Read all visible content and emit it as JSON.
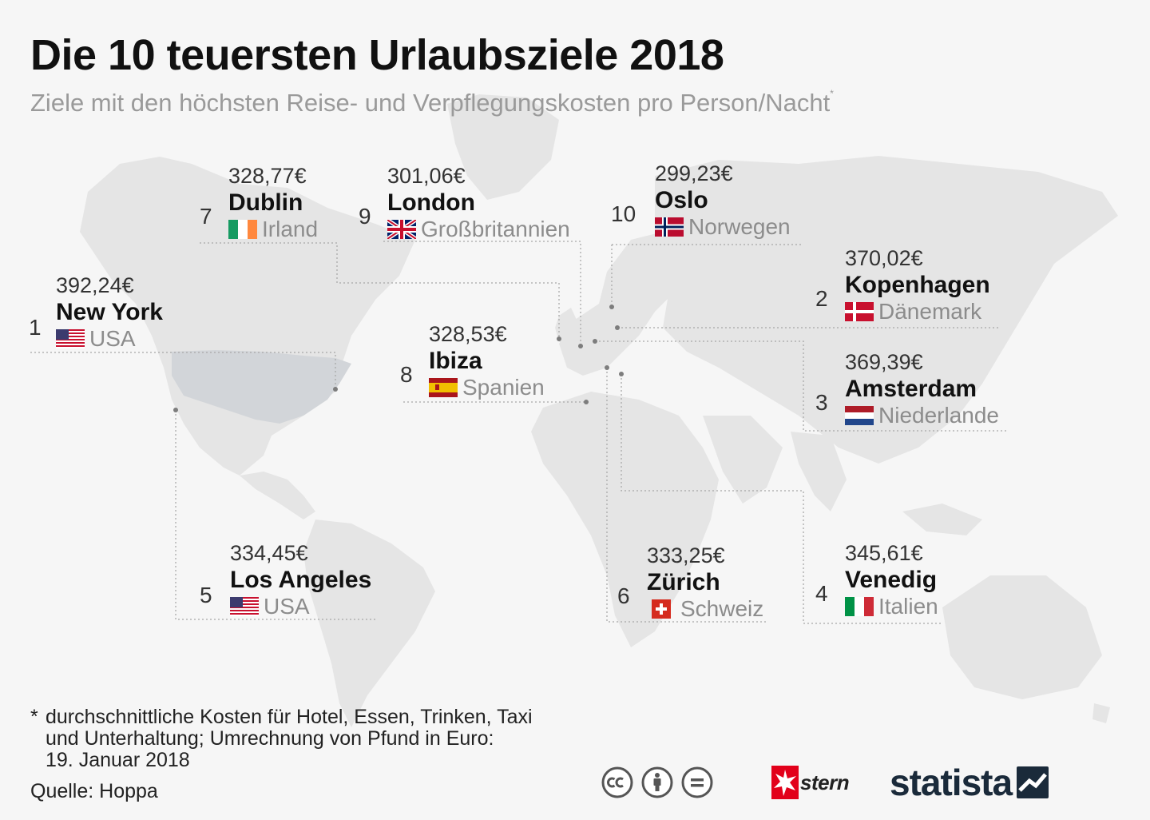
{
  "title": "Die 10 teuersten Urlaubsziele 2018",
  "subtitle": "Ziele mit den höchsten Reise- und Verpflegungskosten pro Person/Nacht",
  "subtitle_marker": "*",
  "destinations": [
    {
      "rank": "1",
      "price": "392,24€",
      "city": "New York",
      "country": "USA",
      "flag": "usa-flag-icon"
    },
    {
      "rank": "2",
      "price": "370,02€",
      "city": "Kopenhagen",
      "country": "Dänemark",
      "flag": "denmark-flag-icon"
    },
    {
      "rank": "3",
      "price": "369,39€",
      "city": "Amsterdam",
      "country": "Niederlande",
      "flag": "netherlands-flag-icon"
    },
    {
      "rank": "4",
      "price": "345,61€",
      "city": "Venedig",
      "country": "Italien",
      "flag": "italy-flag-icon"
    },
    {
      "rank": "5",
      "price": "334,45€",
      "city": "Los Angeles",
      "country": "USA",
      "flag": "usa-flag-icon"
    },
    {
      "rank": "6",
      "price": "333,25€",
      "city": "Zürich",
      "country": "Schweiz",
      "flag": "switzerland-flag-icon"
    },
    {
      "rank": "7",
      "price": "328,77€",
      "city": "Dublin",
      "country": "Irland",
      "flag": "ireland-flag-icon"
    },
    {
      "rank": "8",
      "price": "328,53€",
      "city": "Ibiza",
      "country": "Spanien",
      "flag": "spain-flag-icon"
    },
    {
      "rank": "9",
      "price": "301,06€",
      "city": "London",
      "country": "Großbritannien",
      "flag": "uk-flag-icon"
    },
    {
      "rank": "10",
      "price": "299,23€",
      "city": "Oslo",
      "country": "Norwegen",
      "flag": "norway-flag-icon"
    }
  ],
  "footnote": {
    "marker": "*",
    "lines": [
      "durchschnittliche Kosten für Hotel, Essen, Trinken, Taxi",
      "und Unterhaltung; Umrechnung von Pfund in Euro:",
      "19. Januar 2018"
    ]
  },
  "source": "Quelle: Hoppa",
  "license_icons": [
    "cc-icon",
    "attribution-icon",
    "no-derivatives-icon"
  ],
  "logos": {
    "stern": "stern",
    "statista": "statista"
  },
  "colors": {
    "background": "#f6f6f6",
    "land": "#e5e5e5",
    "usa_highlight": "#d2d5d9",
    "leader_line": "#a8a8a8",
    "title": "#111111",
    "subtitle": "#9a9a9a",
    "country_text": "#8c8c8c",
    "stern_red": "#e2001a",
    "statista_blue": "#1a2a3a"
  }
}
